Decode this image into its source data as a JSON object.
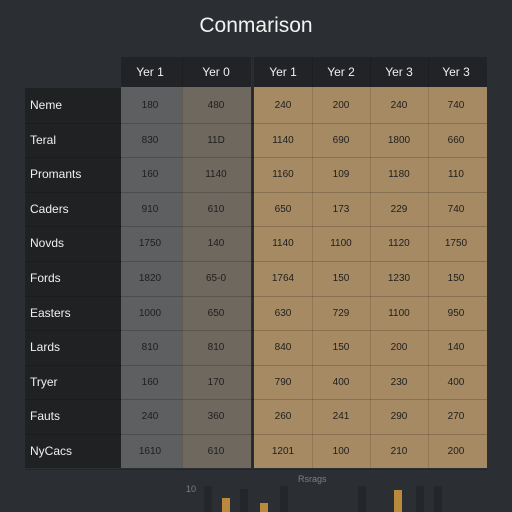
{
  "title": "Conmarison",
  "headers": [
    "Yer 1",
    "Yer 0",
    "Yer 1",
    "Yer 2",
    "Yer 3",
    "Yer 3"
  ],
  "rows": [
    {
      "label": "Neme",
      "values": [
        "180",
        "480",
        "240",
        "200",
        "240",
        "740"
      ]
    },
    {
      "label": "Teral",
      "values": [
        "830",
        "11D",
        "1140",
        "690",
        "1800",
        "660"
      ]
    },
    {
      "label": "Promants",
      "values": [
        "160",
        "1140",
        "1160",
        "109",
        "1180",
        "110"
      ]
    },
    {
      "label": "Caders",
      "values": [
        "910",
        "610",
        "650",
        "173",
        "229",
        "740"
      ]
    },
    {
      "label": "Novds",
      "values": [
        "1750",
        "140",
        "1140",
        "1100",
        "1120",
        "1750"
      ]
    },
    {
      "label": "Fords",
      "values": [
        "1820",
        "65-0",
        "1764",
        "150",
        "1230",
        "150"
      ]
    },
    {
      "label": "Easters",
      "values": [
        "1000",
        "650",
        "630",
        "729",
        "1100",
        "950"
      ]
    },
    {
      "label": "Lards",
      "values": [
        "810",
        "810",
        "840",
        "150",
        "200",
        "140"
      ]
    },
    {
      "label": "Tryer",
      "values": [
        "160",
        "170",
        "790",
        "400",
        "230",
        "400"
      ]
    },
    {
      "label": "Fauts",
      "values": [
        "240",
        "360",
        "260",
        "241",
        "290",
        "270"
      ]
    },
    {
      "label": "NyCacs",
      "values": [
        "1610",
        "610",
        "1201",
        "100",
        "210",
        "200"
      ]
    }
  ],
  "bottom_chart": {
    "tick_label": "10",
    "caption": "Rsrags",
    "bars": [
      {
        "value": 0.0,
        "color": "#3a3c40"
      },
      {
        "value": 1.0,
        "color": "#24262a"
      },
      {
        "value": 0.55,
        "color": "#b98a3c"
      },
      {
        "value": 0.9,
        "color": "#24262a"
      },
      {
        "value": 0.35,
        "color": "#b98a3c"
      },
      {
        "value": 1.0,
        "color": "#24262a"
      },
      {
        "value": 0.0,
        "color": "#3a3c40"
      },
      {
        "value": 0.0,
        "color": "#3a3c40"
      },
      {
        "value": 1.0,
        "color": "#24262a"
      },
      {
        "value": 0.85,
        "color": "#b98a3c"
      },
      {
        "value": 1.0,
        "color": "#24262a"
      },
      {
        "value": 1.0,
        "color": "#24262a"
      }
    ]
  }
}
